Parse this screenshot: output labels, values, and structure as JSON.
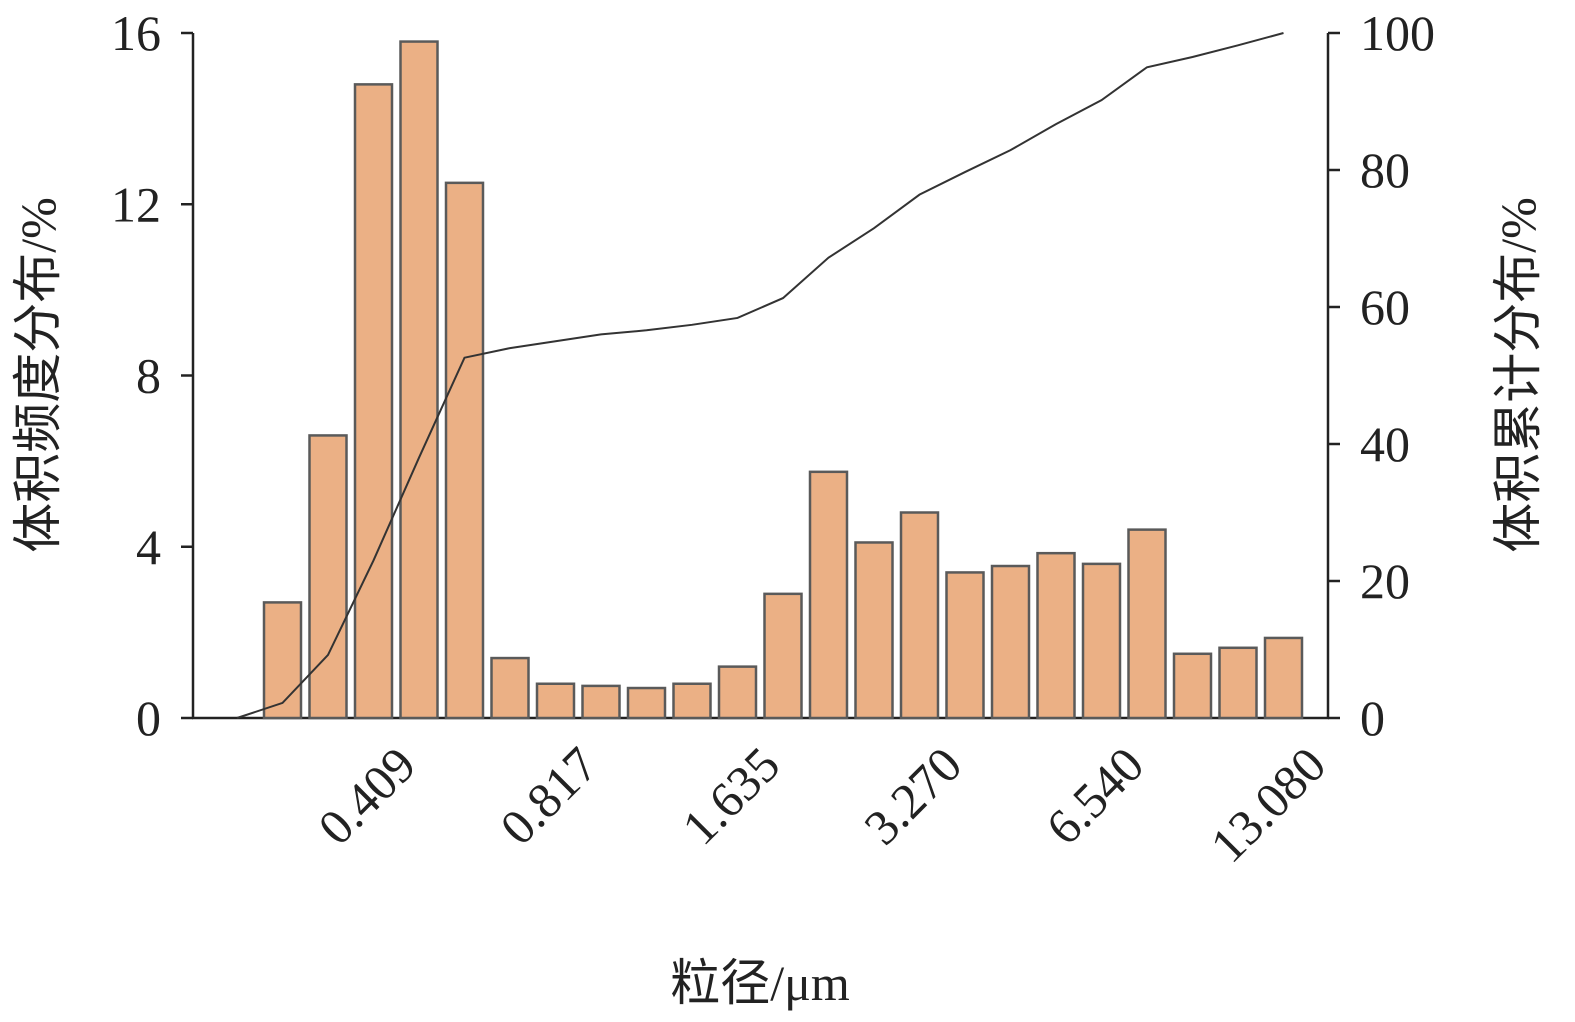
{
  "chart_data": {
    "type": "bar",
    "x_label": "粒径/μm",
    "y_label": "体积频度分布/%",
    "y2_label": "体积累计分布/%",
    "categories": [
      null,
      null,
      null,
      "0.409",
      null,
      null,
      null,
      "0.817",
      null,
      null,
      null,
      "1.635",
      null,
      null,
      null,
      "3.270",
      null,
      null,
      null,
      "6.540",
      null,
      null,
      null,
      "13.080"
    ],
    "series": [
      {
        "type": "bar",
        "color": "#ebb085",
        "values": [
          null,
          2.7,
          6.6,
          14.8,
          15.8,
          12.5,
          1.4,
          0.8,
          0.75,
          0.7,
          0.8,
          1.2,
          2.9,
          5.75,
          4.1,
          4.8,
          3.4,
          3.55,
          3.85,
          3.6,
          4.4,
          1.5,
          1.64,
          1.87
        ]
      },
      {
        "type": "line",
        "axis": "y2",
        "color": "#333333",
        "values": [
          0,
          2.2,
          9.2,
          23,
          38,
          52.6,
          54,
          55,
          56,
          56.6,
          57.4,
          58.4,
          61.3,
          67.2,
          71.5,
          76.4,
          79.7,
          82.9,
          86.7,
          90.2,
          95,
          96.5,
          98.2,
          100
        ]
      }
    ],
    "ylim": [
      0,
      16
    ],
    "yticks": [
      0,
      4,
      8,
      12,
      16
    ],
    "y2lim": [
      0,
      100
    ],
    "y2ticks": [
      0,
      20,
      40,
      60,
      80,
      100
    ]
  }
}
